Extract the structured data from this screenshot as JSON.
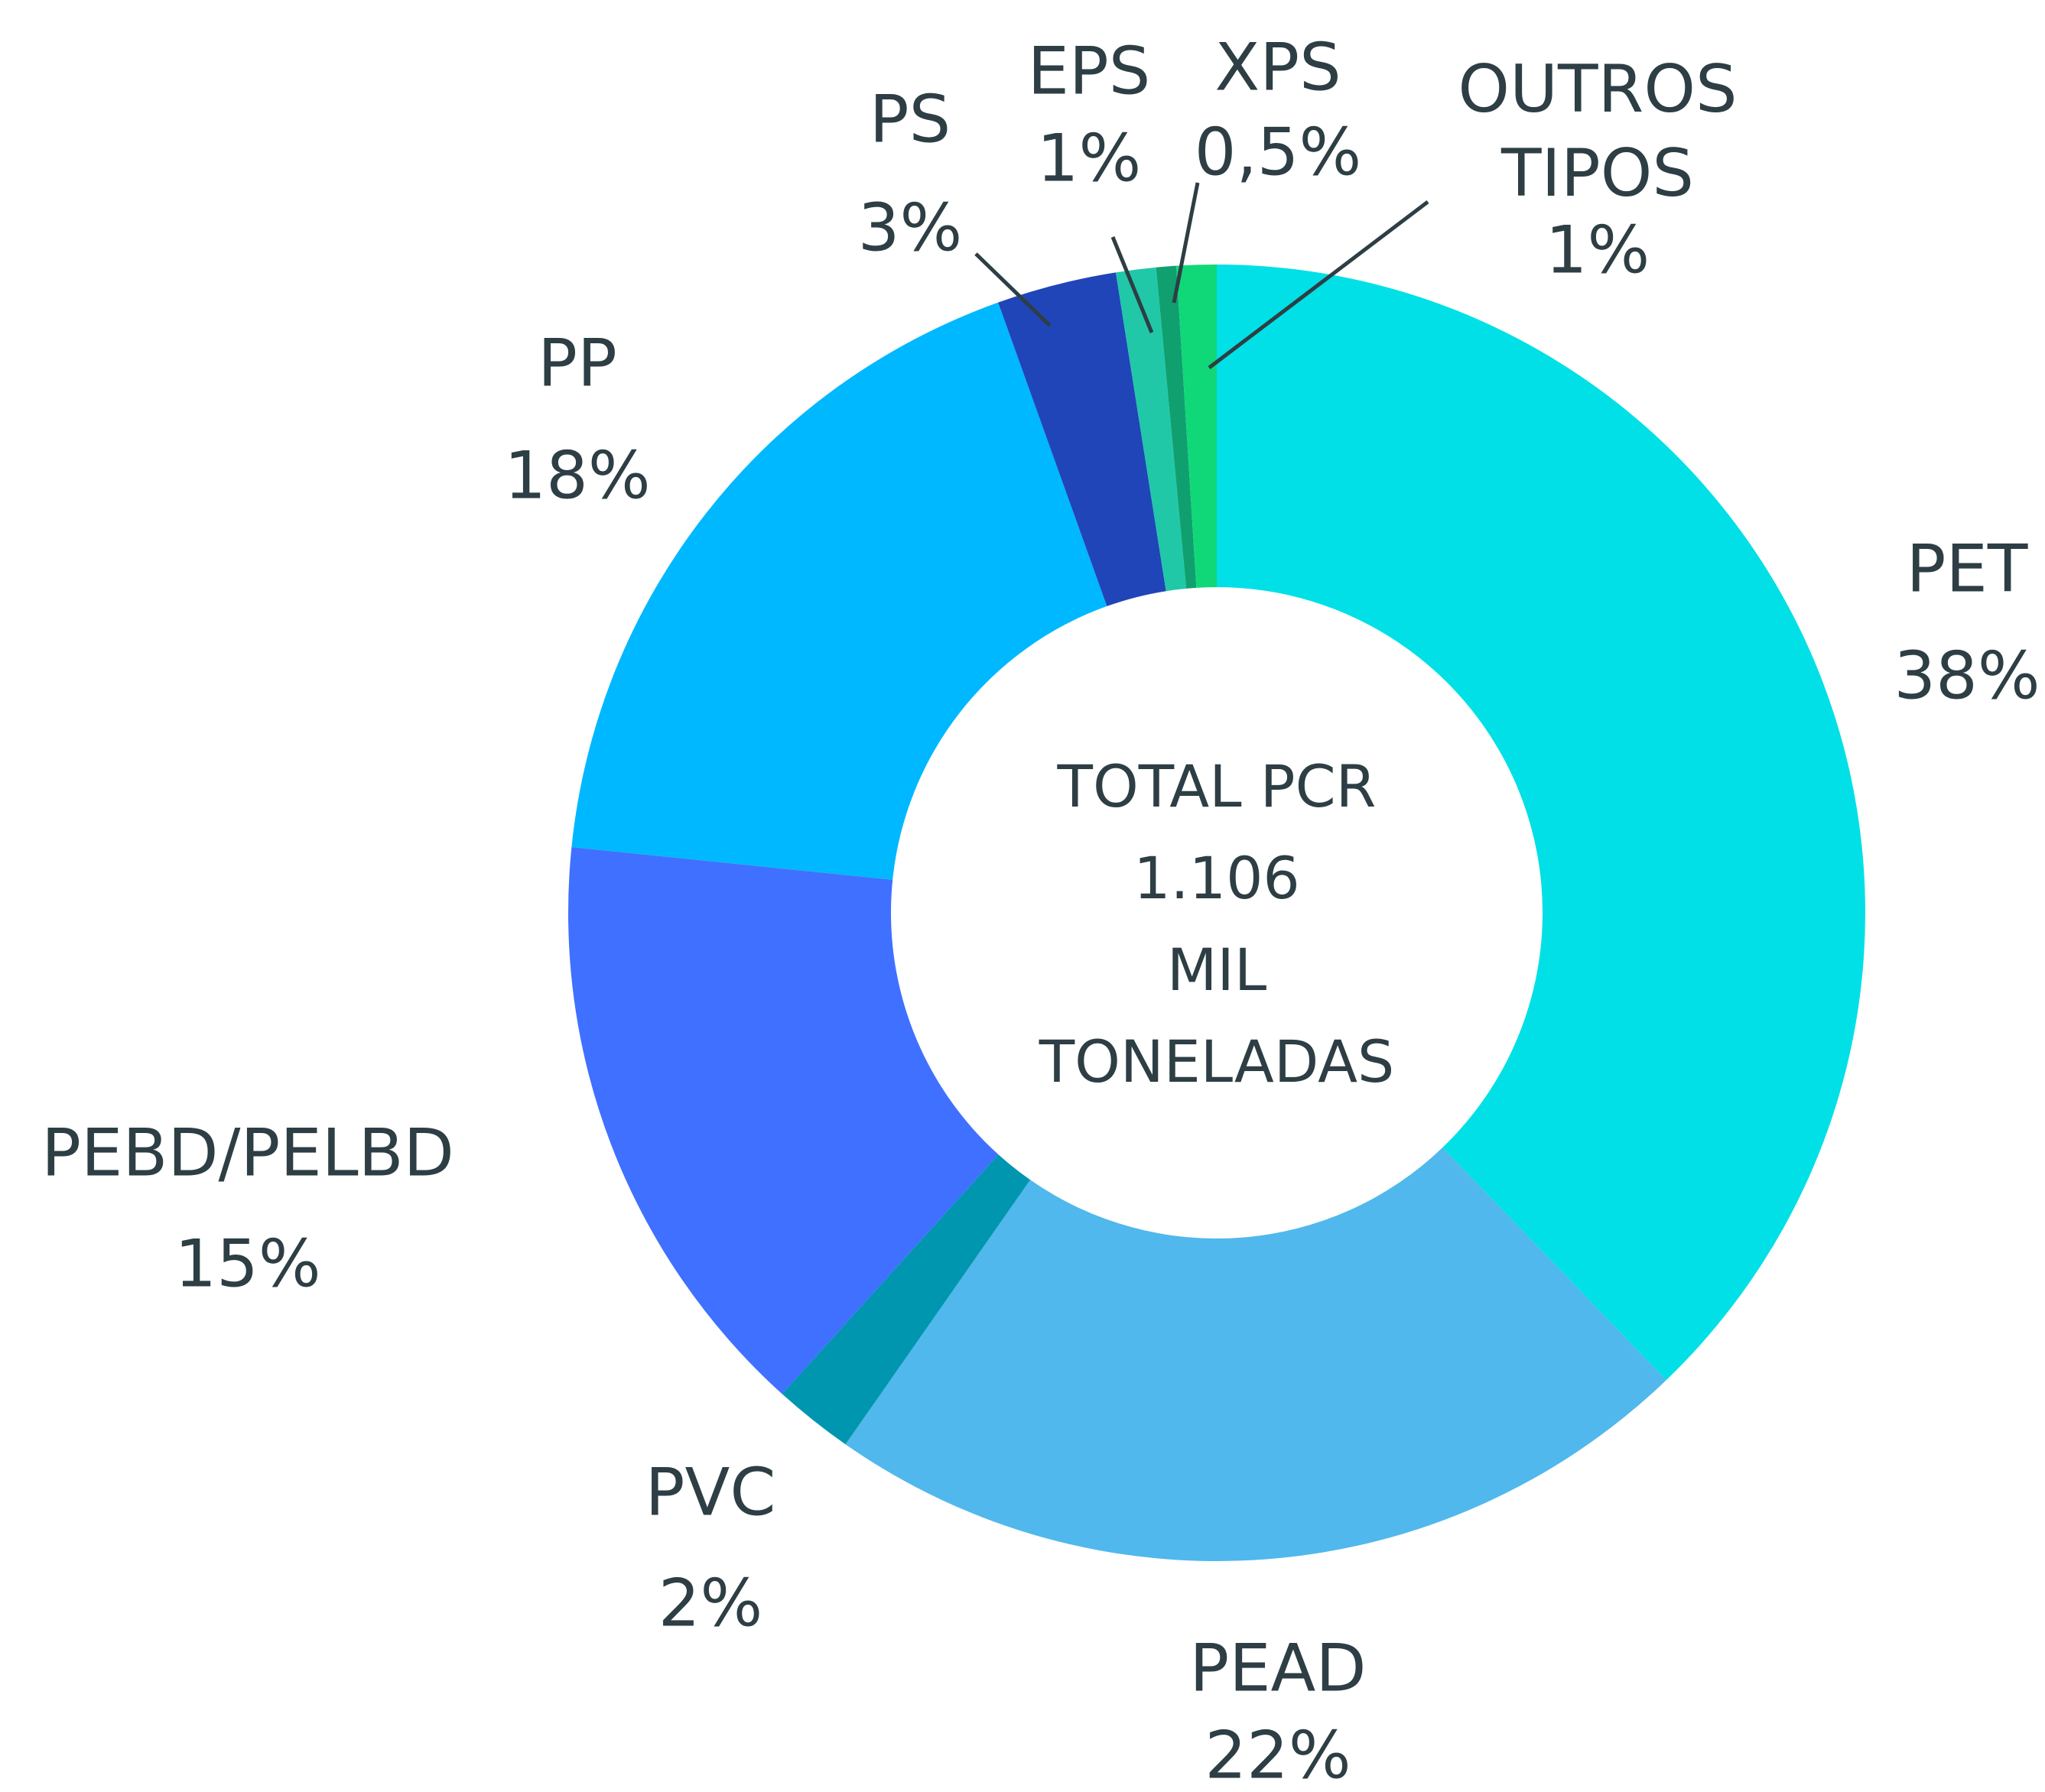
{
  "chart_data": {
    "type": "donut",
    "center_text": [
      "TOTAL PCR",
      "1.106",
      "MIL",
      "TONELADAS"
    ],
    "categories": [
      "PET",
      "PEAD",
      "PVC",
      "PEBD/PELBD",
      "PP",
      "PS",
      "EPS",
      "XPS",
      "OUTROS TIPOS"
    ],
    "values": [
      38,
      22,
      2,
      15,
      18,
      3,
      1,
      0.5,
      1
    ],
    "value_labels": [
      "38%",
      "22%",
      "2%",
      "15%",
      "18%",
      "3%",
      "1%",
      "0,5%",
      "1%"
    ],
    "colors": [
      "#00e0e6",
      "#50b8ec",
      "#0096b0",
      "#4070ff",
      "#00b8ff",
      "#2045b8",
      "#20c8a8",
      "#10a070",
      "#10d878"
    ]
  }
}
